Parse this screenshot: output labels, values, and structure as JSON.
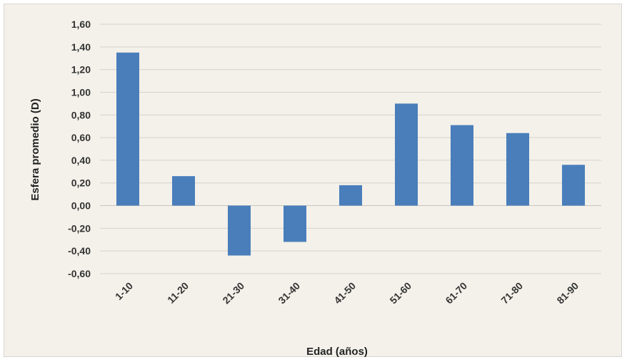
{
  "chart_data": {
    "type": "bar",
    "title": "",
    "xlabel": "Edad (años)",
    "ylabel": "Esfera promedio (D)",
    "categories": [
      "1-10",
      "11-20",
      "21-30",
      "31-40",
      "41-50",
      "51-60",
      "61-70",
      "71-80",
      "81-90"
    ],
    "values": [
      1.35,
      0.26,
      -0.44,
      -0.32,
      0.18,
      0.9,
      0.71,
      0.64,
      0.36
    ],
    "ylim": [
      -0.6,
      1.6
    ],
    "yticks": [
      "-0,60",
      "-0,40",
      "-0,20",
      "0,00",
      "0,20",
      "0,40",
      "0,60",
      "0,80",
      "1,00",
      "1,20",
      "1,40",
      "1,60"
    ],
    "grid": true,
    "legend": "none",
    "bar_color": "#4a7ebb"
  }
}
